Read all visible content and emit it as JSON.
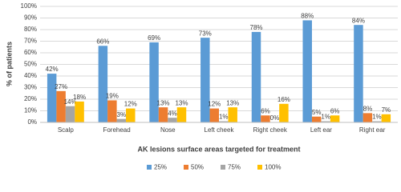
{
  "chart_data": {
    "type": "bar",
    "y_label": "% of patients",
    "x_label": "AK lesions surface areas targeted for treatment",
    "categories": [
      "Scalp",
      "Forehead",
      "Nose",
      "Left cheek",
      "Right cheek",
      "Left ear",
      "Right ear"
    ],
    "series": [
      {
        "name": "25%",
        "color": "#5b9bd5",
        "values": [
          42,
          66,
          69,
          73,
          78,
          88,
          84
        ],
        "value_labels": [
          "42%",
          "66%",
          "69%",
          "73%",
          "78%",
          "88%",
          "84%"
        ]
      },
      {
        "name": "50%",
        "color": "#ed7d31",
        "values": [
          27,
          19,
          13,
          12,
          6,
          5,
          8
        ],
        "value_labels": [
          "27%",
          "19%",
          "13%",
          "12%",
          "6%",
          "5%",
          "8%"
        ]
      },
      {
        "name": "75%",
        "color": "#a5a5a5",
        "values": [
          14,
          3,
          4,
          1,
          0,
          1,
          1
        ],
        "value_labels": [
          "14%",
          "3%",
          "4%",
          "1%",
          "0%",
          "1%",
          "1%"
        ]
      },
      {
        "name": "100%",
        "color": "#ffc000",
        "values": [
          18,
          12,
          13,
          13,
          16,
          6,
          7
        ],
        "value_labels": [
          "18%",
          "12%",
          "13%",
          "13%",
          "16%",
          "6%",
          "7%"
        ]
      }
    ],
    "ylim": [
      0,
      100
    ],
    "yticks": [
      {
        "value": 0,
        "label": "0%"
      },
      {
        "value": 10,
        "label": "10%"
      },
      {
        "value": 20,
        "label": "20%"
      },
      {
        "value": 30,
        "label": "30%"
      },
      {
        "value": 40,
        "label": "40%"
      },
      {
        "value": 50,
        "label": "50%"
      },
      {
        "value": 60,
        "label": "60%"
      },
      {
        "value": 70,
        "label": "70%"
      },
      {
        "value": 80,
        "label": "80%"
      },
      {
        "value": 90,
        "label": "90%"
      },
      {
        "value": 100,
        "label": "100%"
      }
    ],
    "grid": true,
    "legend": "bottom"
  }
}
